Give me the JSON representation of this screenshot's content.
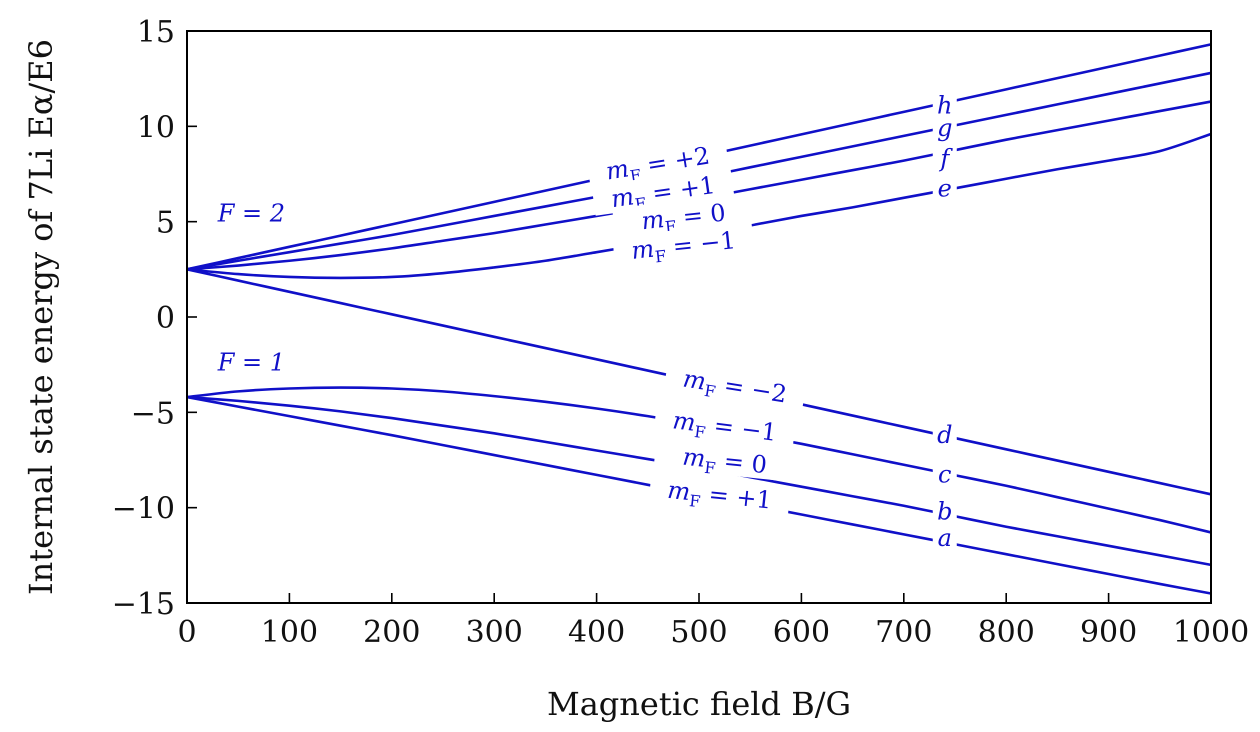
{
  "chart_data": {
    "type": "line",
    "title": "",
    "xlabel": "Magnetic field B/G",
    "ylabel": "Internal state energy of 7Li Eα/E6",
    "xlim": [
      0,
      1000
    ],
    "ylim": [
      -15,
      15
    ],
    "xticks": [
      0,
      100,
      200,
      300,
      400,
      500,
      600,
      700,
      800,
      900,
      1000
    ],
    "yticks": [
      -15,
      -10,
      -5,
      0,
      5,
      10,
      15
    ],
    "line_color": "#1010c8",
    "x": [
      0,
      50,
      100,
      150,
      200,
      250,
      300,
      350,
      400,
      450,
      500,
      550,
      600,
      650,
      700,
      750,
      800,
      850,
      900,
      950,
      1000
    ],
    "series": [
      {
        "name": "h",
        "manifold": "F=2",
        "mF": "+2",
        "values": [
          2.5,
          3.09,
          3.68,
          4.27,
          4.86,
          5.45,
          6.04,
          6.63,
          7.22,
          7.81,
          8.4,
          8.99,
          9.58,
          10.17,
          10.76,
          11.35,
          11.94,
          12.53,
          13.12,
          13.71,
          14.3
        ]
      },
      {
        "name": "g",
        "manifold": "F=2",
        "mF": "+1",
        "values": [
          2.5,
          2.95,
          3.4,
          3.85,
          4.3,
          4.8,
          5.3,
          5.8,
          6.3,
          6.8,
          7.3,
          7.85,
          8.4,
          8.95,
          9.5,
          10.05,
          10.6,
          11.15,
          11.7,
          12.25,
          12.8
        ]
      },
      {
        "name": "f",
        "manifold": "F=2",
        "mF": "0",
        "values": [
          2.5,
          2.7,
          2.95,
          3.25,
          3.6,
          4.0,
          4.4,
          4.85,
          5.3,
          5.75,
          6.2,
          6.7,
          7.2,
          7.7,
          8.2,
          8.75,
          9.3,
          9.8,
          10.3,
          10.8,
          11.3
        ]
      },
      {
        "name": "e",
        "manifold": "F=2",
        "mF": "-1",
        "values": [
          2.5,
          2.25,
          2.1,
          2.05,
          2.1,
          2.3,
          2.6,
          2.95,
          3.4,
          3.85,
          4.3,
          4.8,
          5.3,
          5.75,
          6.25,
          6.75,
          7.25,
          7.75,
          8.2,
          8.7,
          9.6
        ]
      },
      {
        "name": "d",
        "manifold": "F=2",
        "mF": "-2",
        "values": [
          2.5,
          1.91,
          1.32,
          0.73,
          0.14,
          -0.45,
          -1.04,
          -1.63,
          -2.22,
          -2.81,
          -3.4,
          -3.99,
          -4.58,
          -5.17,
          -5.76,
          -6.35,
          -6.94,
          -7.53,
          -8.12,
          -8.71,
          -9.3
        ]
      },
      {
        "name": "c",
        "manifold": "F=1",
        "mF": "-1",
        "values": [
          -4.2,
          -3.9,
          -3.75,
          -3.7,
          -3.75,
          -3.9,
          -4.15,
          -4.45,
          -4.8,
          -5.2,
          -5.65,
          -6.15,
          -6.65,
          -7.2,
          -7.75,
          -8.3,
          -8.85,
          -9.45,
          -10.05,
          -10.65,
          -11.3
        ]
      },
      {
        "name": "b",
        "manifold": "F=1",
        "mF": "0",
        "values": [
          -4.2,
          -4.4,
          -4.65,
          -4.95,
          -5.3,
          -5.7,
          -6.1,
          -6.55,
          -7.0,
          -7.45,
          -7.9,
          -8.4,
          -8.9,
          -9.4,
          -9.9,
          -10.45,
          -11.0,
          -11.5,
          -12.0,
          -12.5,
          -13.0
        ]
      },
      {
        "name": "a",
        "manifold": "F=1",
        "mF": "+1",
        "values": [
          -4.2,
          -4.7,
          -5.2,
          -5.7,
          -6.2,
          -6.72,
          -7.24,
          -7.76,
          -8.28,
          -8.8,
          -9.32,
          -9.84,
          -10.36,
          -10.88,
          -11.4,
          -11.92,
          -12.44,
          -12.96,
          -13.48,
          -14.0,
          -14.5
        ]
      }
    ],
    "curve_labels": [
      {
        "text": "h",
        "x": 740,
        "y": 11.1
      },
      {
        "text": "g",
        "x": 740,
        "y": 9.9
      },
      {
        "text": "f",
        "x": 740,
        "y": 8.3
      },
      {
        "text": "e",
        "x": 740,
        "y": 6.75
      },
      {
        "text": "d",
        "x": 740,
        "y": -6.2
      },
      {
        "text": "c",
        "x": 740,
        "y": -8.25
      },
      {
        "text": "b",
        "x": 740,
        "y": -10.2
      },
      {
        "text": "a",
        "x": 740,
        "y": -11.6
      }
    ],
    "mf_labels": [
      {
        "m": "m",
        "sub": "F",
        "rest": " = +2",
        "x": 460,
        "y": 8.0,
        "angle_deg": -9
      },
      {
        "m": "m",
        "sub": "F",
        "rest": " = +1",
        "x": 465,
        "y": 6.5,
        "angle_deg": -8
      },
      {
        "m": "m",
        "sub": "F",
        "rest": " = 0",
        "x": 485,
        "y": 5.2,
        "angle_deg": -6
      },
      {
        "m": "m",
        "sub": "F",
        "rest": " = −1",
        "x": 485,
        "y": 3.7,
        "angle_deg": -6
      },
      {
        "m": "m",
        "sub": "F",
        "rest": " = −2",
        "x": 535,
        "y": -3.7,
        "angle_deg": 9
      },
      {
        "m": "m",
        "sub": "F",
        "rest": " = −1",
        "x": 525,
        "y": -5.8,
        "angle_deg": 7
      },
      {
        "m": "m",
        "sub": "F",
        "rest": " = 0",
        "x": 525,
        "y": -7.6,
        "angle_deg": 6
      },
      {
        "m": "m",
        "sub": "F",
        "rest": " = +1",
        "x": 520,
        "y": -9.4,
        "angle_deg": 6
      }
    ],
    "manifold_labels": [
      {
        "text": "F = 2",
        "x": 30,
        "y": 5.0
      },
      {
        "text": "F = 1",
        "x": 30,
        "y": -2.8
      }
    ]
  }
}
